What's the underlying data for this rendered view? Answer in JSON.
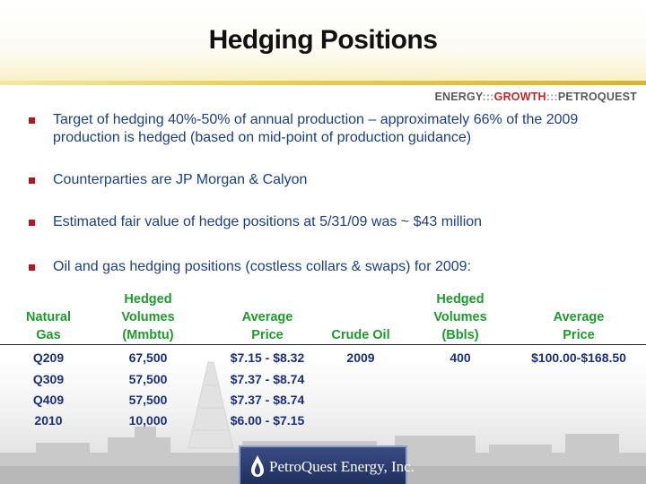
{
  "title": "Hedging Positions",
  "tagline": {
    "part1": "ENERGY",
    "sep": ":::",
    "part2": "GROWTH",
    "part3": "PETROQUEST"
  },
  "bullets": [
    "Target of hedging 40%-50% of annual production – approximately 66% of the 2009 production is hedged (based on mid-point of production guidance)",
    "Counterparties are JP Morgan & Calyon",
    "Estimated fair value of hedge positions at 5/31/09 was ~ $43 million",
    "Oil and gas hedging positions (costless collars & swaps) for 2009:"
  ],
  "gas_table": {
    "headers": [
      [
        "Natural",
        "Gas"
      ],
      [
        "Hedged",
        "Volumes",
        "(Mmbtu)"
      ],
      [
        "Average",
        "Price"
      ]
    ],
    "rows": [
      [
        "Q209",
        "67,500",
        "$7.15 - $8.32"
      ],
      [
        "Q309",
        "57,500",
        "$7.37 - $8.74"
      ],
      [
        "Q409",
        "57,500",
        "$7.37 - $8.74"
      ],
      [
        "2010",
        "10,000",
        "$6.00 - $7.15"
      ]
    ]
  },
  "oil_table": {
    "headers": [
      [
        "Crude Oil"
      ],
      [
        "Hedged",
        "Volumes",
        "(Bbls)"
      ],
      [
        "Average",
        "Price"
      ]
    ],
    "rows": [
      [
        "2009",
        "400",
        "$100.00-$168.50"
      ]
    ]
  },
  "logo": {
    "name": "PetroQuest Energy, Inc."
  },
  "colors": {
    "bullet_text": "#1a3f86",
    "bullet_marker": "#a81e1e",
    "header_green": "#1f9a2c",
    "cell_blue": "#1b2f7a",
    "gold_rule": "#e3c440",
    "growth_red": "#c02828"
  }
}
